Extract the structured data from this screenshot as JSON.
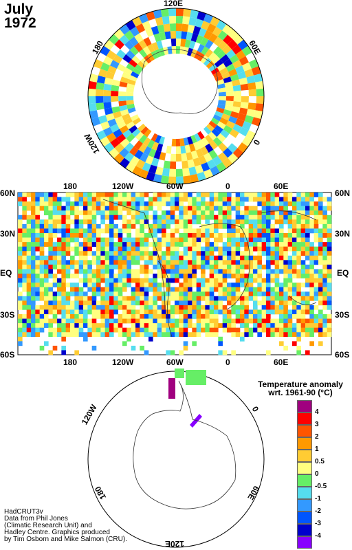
{
  "title": {
    "month": "July",
    "year": "1972"
  },
  "north_polar": {
    "labels": {
      "top": "120E",
      "left": "180",
      "right": "60E",
      "lower_left": "120W",
      "lower_right": "0"
    }
  },
  "main_map": {
    "top_axis": [
      "180",
      "120W",
      "60W",
      "0",
      "60E"
    ],
    "bottom_axis": [
      "180",
      "120W",
      "60W",
      "0",
      "60E"
    ],
    "left_axis": [
      "60N",
      "30N",
      "EQ",
      "30S",
      "60S"
    ],
    "right_axis": [
      "60N",
      "30N",
      "EQ",
      "30S",
      "60S"
    ]
  },
  "south_polar": {
    "labels": {
      "upper_left": "120W",
      "upper_right": "0",
      "lower_left": "180",
      "lower_right": "60E",
      "bottom": "120E"
    }
  },
  "legend": {
    "title_line1": "Temperature anomaly",
    "title_line2": "wrt. 1961-90  (°C)",
    "bins": [
      {
        "label": "4",
        "color": "#a0007f"
      },
      {
        "label": "3",
        "color": "#ff0000"
      },
      {
        "label": "2",
        "color": "#ff5500"
      },
      {
        "label": "1",
        "color": "#ff9900"
      },
      {
        "label": "0.5",
        "color": "#ffcc33"
      },
      {
        "label": "0",
        "color": "#ffff80"
      },
      {
        "label": "-0.5",
        "color": "#66ee66"
      },
      {
        "label": "-1",
        "color": "#55ddee"
      },
      {
        "label": "-2",
        "color": "#3399ff"
      },
      {
        "label": "-3",
        "color": "#0055ff"
      },
      {
        "label": "-4",
        "color": "#0000cc"
      },
      {
        "label": "",
        "color": "#8800ff"
      }
    ]
  },
  "credits": {
    "line1": "HadCRUT3v",
    "line2": "Data from Phil Jones",
    "line3": "(Climatic Research Unit) and",
    "line4": "Hadley Centre.  Graphics produced",
    "line5": "by Tim Osborn and Mike Salmon (CRU)."
  }
}
